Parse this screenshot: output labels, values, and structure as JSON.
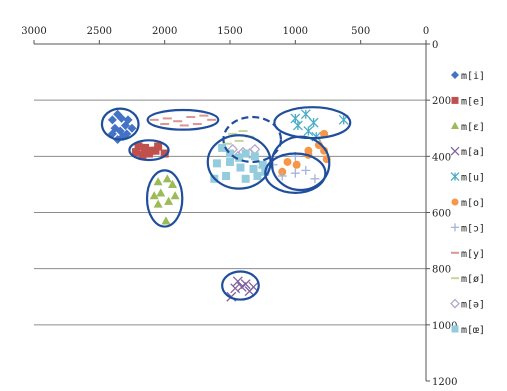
{
  "chart_data": {
    "type": "scatter",
    "title": "",
    "xlabel": "",
    "ylabel": "",
    "xlim": [
      3000,
      0
    ],
    "ylim": [
      1200,
      0
    ],
    "x_reversed": true,
    "y_reversed": true,
    "x_ticks": [
      "3000",
      "2500",
      "2000",
      "1500",
      "1000",
      "500",
      "0"
    ],
    "y_ticks": [
      "0",
      "200",
      "400",
      "600",
      "800",
      "1000",
      "1200"
    ],
    "y_gridlines": [
      200,
      400,
      600,
      800,
      1000
    ],
    "legend_position": "right",
    "series": [
      {
        "name": "m[i]",
        "color": "#4472c4",
        "marker": "diamond",
        "points": [
          [
            2400,
            270
          ],
          [
            2360,
            250
          ],
          [
            2330,
            265
          ],
          [
            2380,
            300
          ],
          [
            2340,
            310
          ],
          [
            2300,
            290
          ],
          [
            2280,
            270
          ],
          [
            2360,
            340
          ],
          [
            2320,
            330
          ],
          [
            2250,
            300
          ],
          [
            2290,
            320
          ],
          [
            2400,
            320
          ]
        ]
      },
      {
        "name": "m[e]",
        "color": "#c0504d",
        "marker": "square",
        "points": [
          [
            2200,
            365
          ],
          [
            2150,
            370
          ],
          [
            2100,
            380
          ],
          [
            2050,
            365
          ],
          [
            2170,
            395
          ],
          [
            2120,
            390
          ],
          [
            2070,
            380
          ],
          [
            2000,
            390
          ],
          [
            2220,
            385
          ]
        ]
      },
      {
        "name": "m[ɛ]",
        "color": "#9bbb59",
        "marker": "triangle",
        "points": [
          [
            2050,
            490
          ],
          [
            1980,
            480
          ],
          [
            1940,
            500
          ],
          [
            2080,
            540
          ],
          [
            2030,
            530
          ],
          [
            1970,
            560
          ],
          [
            1920,
            540
          ],
          [
            2050,
            570
          ],
          [
            1990,
            630
          ]
        ]
      },
      {
        "name": "m[a]",
        "color": "#8064a2",
        "marker": "x",
        "points": [
          [
            1440,
            845
          ],
          [
            1380,
            855
          ],
          [
            1320,
            865
          ],
          [
            1460,
            870
          ],
          [
            1410,
            865
          ],
          [
            1490,
            900
          ],
          [
            1350,
            880
          ]
        ]
      },
      {
        "name": "m[u]",
        "color": "#4bacc6",
        "marker": "asterisk",
        "points": [
          [
            1000,
            265
          ],
          [
            920,
            250
          ],
          [
            860,
            280
          ],
          [
            630,
            270
          ],
          [
            980,
            290
          ],
          [
            900,
            310
          ],
          [
            840,
            330
          ]
        ]
      },
      {
        "name": "m[o]",
        "color": "#f79646",
        "marker": "circle",
        "points": [
          [
            780,
            320
          ],
          [
            820,
            360
          ],
          [
            780,
            380
          ],
          [
            900,
            380
          ],
          [
            1060,
            420
          ],
          [
            990,
            430
          ],
          [
            1100,
            455
          ],
          [
            900,
            395
          ],
          [
            760,
            410
          ]
        ]
      },
      {
        "name": "m[ɔ]",
        "color": "#a5b4d9",
        "marker": "plus",
        "points": [
          [
            1250,
            440
          ],
          [
            1170,
            430
          ],
          [
            1100,
            470
          ],
          [
            1000,
            400
          ],
          [
            1000,
            460
          ],
          [
            920,
            450
          ],
          [
            850,
            480
          ]
        ]
      },
      {
        "name": "m[y]",
        "color": "#d99694",
        "marker": "dash",
        "points": [
          [
            2080,
            270
          ],
          [
            1980,
            265
          ],
          [
            1900,
            275
          ],
          [
            1800,
            260
          ],
          [
            1750,
            285
          ],
          [
            1850,
            290
          ],
          [
            1700,
            255
          ],
          [
            1640,
            270
          ],
          [
            2000,
            285
          ]
        ]
      },
      {
        "name": "m[ø]",
        "color": "#c3d69b",
        "marker": "dash",
        "points": [
          [
            1480,
            320
          ],
          [
            1400,
            310
          ],
          [
            1350,
            330
          ],
          [
            1430,
            345
          ],
          [
            1520,
            355
          ]
        ]
      },
      {
        "name": "m[ə]",
        "color": "#b3a2c7",
        "marker": "diamond-open",
        "points": [
          [
            1480,
            375
          ],
          [
            1400,
            385
          ],
          [
            1350,
            390
          ],
          [
            1310,
            375
          ],
          [
            1440,
            400
          ]
        ]
      },
      {
        "name": "m[œ]",
        "color": "#93cddd",
        "marker": "square",
        "points": [
          [
            1560,
            370
          ],
          [
            1500,
            390
          ],
          [
            1430,
            405
          ],
          [
            1380,
            390
          ],
          [
            1310,
            400
          ],
          [
            1600,
            425
          ],
          [
            1500,
            420
          ],
          [
            1420,
            440
          ],
          [
            1320,
            445
          ],
          [
            1250,
            430
          ],
          [
            1620,
            480
          ],
          [
            1530,
            470
          ],
          [
            1380,
            480
          ],
          [
            1290,
            470
          ],
          [
            1230,
            455
          ]
        ]
      }
    ],
    "annotations": {
      "ellipses": [
        {
          "cx": 2340,
          "cy": 285,
          "rx": 140,
          "ry": 55,
          "style": "solid"
        },
        {
          "cx": 1860,
          "cy": 270,
          "rx": 270,
          "ry": 35,
          "style": "solid"
        },
        {
          "cx": 2120,
          "cy": 378,
          "rx": 150,
          "ry": 35,
          "style": "solid"
        },
        {
          "cx": 2000,
          "cy": 550,
          "rx": 135,
          "ry": 100,
          "style": "solid"
        },
        {
          "cx": 1420,
          "cy": 860,
          "rx": 140,
          "ry": 50,
          "style": "solid"
        },
        {
          "cx": 870,
          "cy": 280,
          "rx": 290,
          "ry": 55,
          "style": "solid"
        },
        {
          "cx": 1330,
          "cy": 340,
          "rx": 220,
          "ry": 80,
          "style": "dashed"
        },
        {
          "cx": 1430,
          "cy": 420,
          "rx": 240,
          "ry": 95,
          "style": "solid"
        },
        {
          "cx": 960,
          "cy": 425,
          "rx": 220,
          "ry": 95,
          "style": "solid"
        },
        {
          "cx": 1000,
          "cy": 460,
          "rx": 230,
          "ry": 70,
          "style": "solid"
        }
      ]
    }
  }
}
